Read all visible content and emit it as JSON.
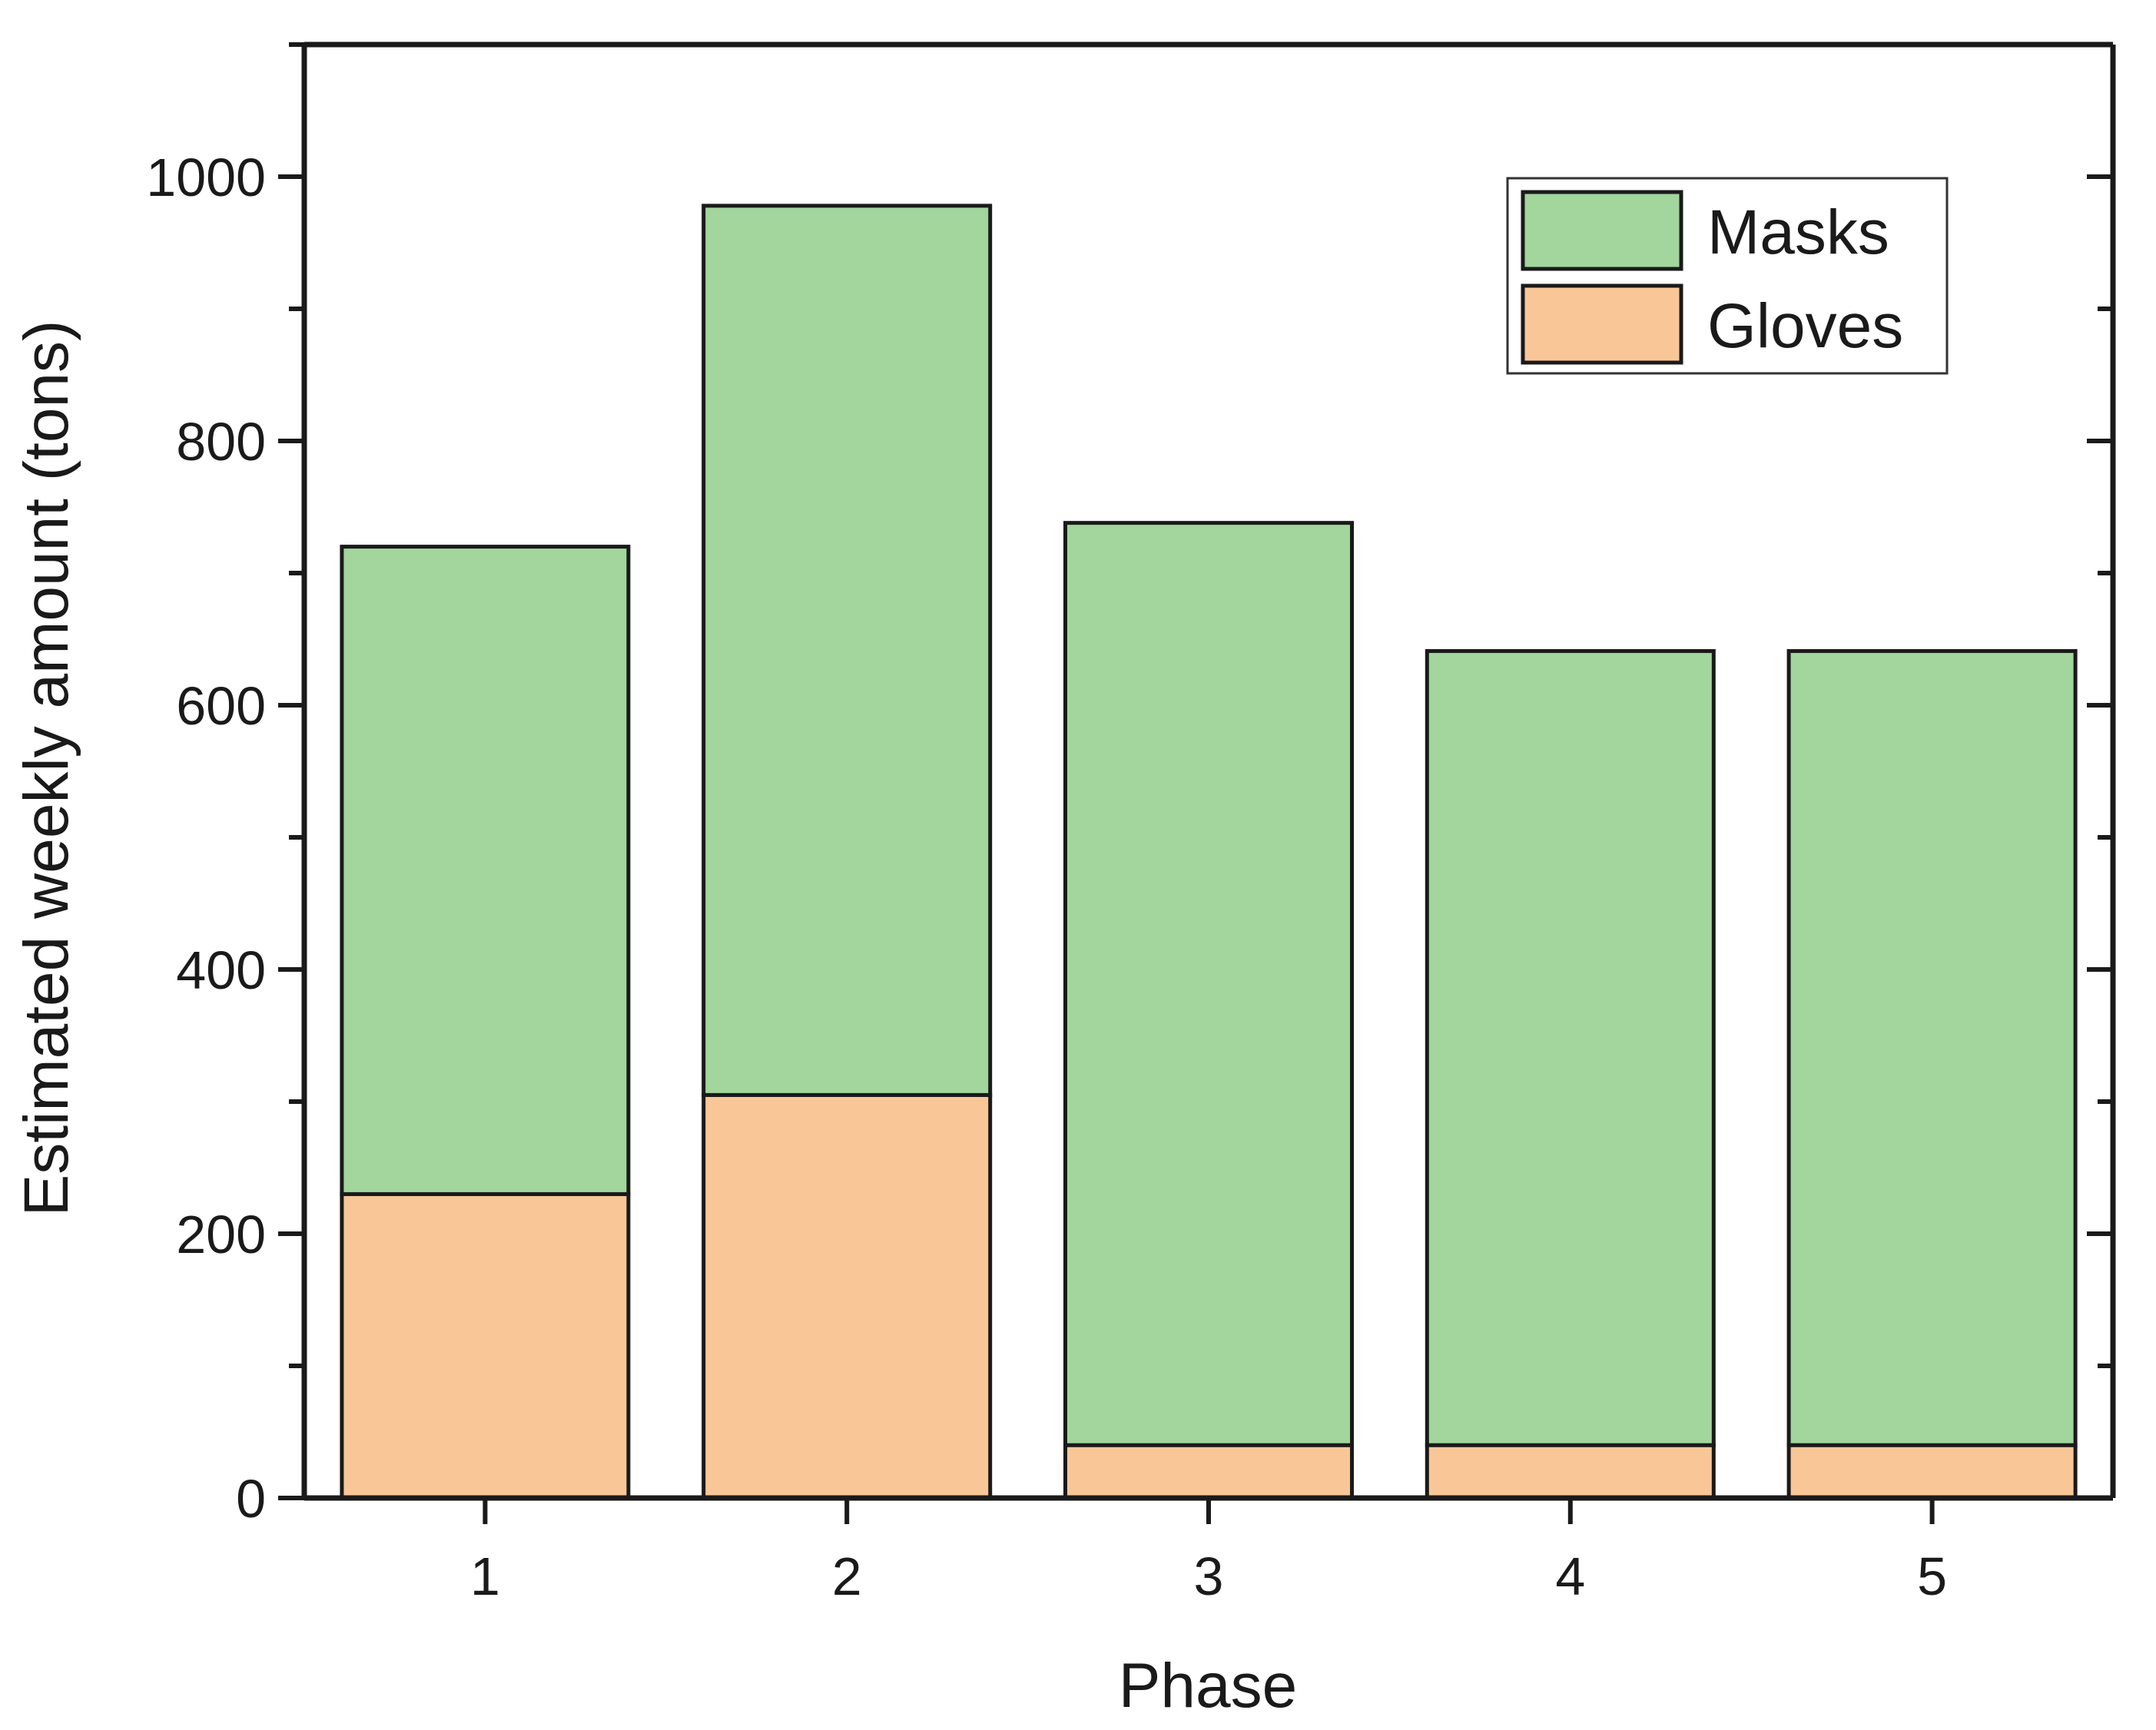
{
  "chart_data": {
    "type": "bar",
    "stacked": true,
    "categories": [
      "1",
      "2",
      "3",
      "4",
      "5"
    ],
    "series": [
      {
        "name": "Gloves",
        "values": [
          230,
          305,
          40,
          40,
          40
        ],
        "color": "#f9c797"
      },
      {
        "name": "Masks",
        "values": [
          490,
          673,
          698,
          601,
          601
        ],
        "color": "#a2d69d"
      }
    ],
    "totals": [
      720,
      978,
      738,
      641,
      641
    ],
    "xlabel": "Phase",
    "ylabel": "Estimated weekly amount (tons)",
    "ylim": [
      0,
      1100
    ],
    "yticks": [
      0,
      200,
      400,
      600,
      800,
      1000
    ],
    "yticks_minor_step": 100,
    "grid": false,
    "legend_position": "top-right",
    "legend_order": [
      "Masks",
      "Gloves"
    ]
  }
}
